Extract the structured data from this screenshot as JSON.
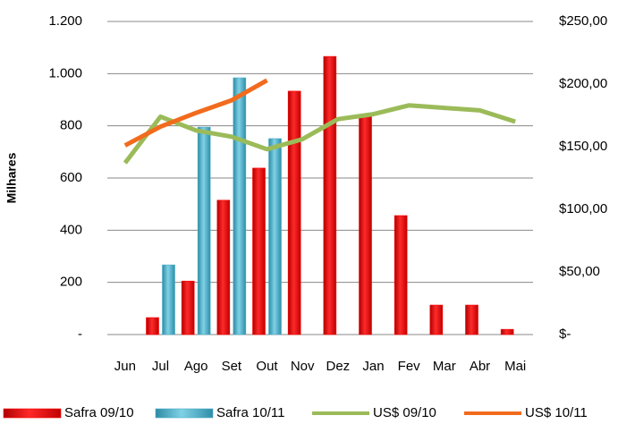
{
  "chart_data": {
    "type": "bar-line",
    "y_label": "Milhares",
    "categories": [
      "Jun",
      "Jul",
      "Ago",
      "Set",
      "Out",
      "Nov",
      "Dez",
      "Jan",
      "Fev",
      "Mar",
      "Abr",
      "Mai"
    ],
    "series": [
      {
        "name": "Safra 09/10",
        "kind": "bar",
        "color": "#ff0000",
        "values": [
          null,
          65,
          205,
          515,
          638,
          933,
          1066,
          843,
          456,
          113,
          113,
          20
        ]
      },
      {
        "name": "Safra 10/11",
        "kind": "bar",
        "color": "#4bacc6",
        "values": [
          null,
          267,
          795,
          984,
          751,
          null,
          null,
          null,
          null,
          null,
          null,
          null
        ]
      },
      {
        "name": "US$ 09/10",
        "kind": "line",
        "axis": "y2",
        "color": "#9bbb59",
        "values": [
          137,
          174,
          163,
          158,
          148,
          156,
          172,
          176,
          183,
          181,
          179,
          170
        ]
      },
      {
        "name": "US$ 10/11",
        "kind": "line",
        "axis": "y2",
        "color": "#f26b1d",
        "values": [
          151,
          166,
          177,
          187,
          203,
          null,
          null,
          null,
          null,
          null,
          null,
          null
        ]
      }
    ],
    "ylim": [
      0,
      1200
    ],
    "yticks": [
      {
        "value": 0,
        "label": "-"
      },
      200,
      400,
      600,
      800,
      {
        "value": 1000,
        "label": "1.000"
      },
      {
        "value": 1200,
        "label": "1.200"
      }
    ],
    "y2lim": [
      0,
      250
    ],
    "y2ticks": [
      {
        "value": 0,
        "label": "$-"
      },
      {
        "value": 50,
        "label": "$50,00"
      },
      {
        "value": 100,
        "label": "$100,00"
      },
      {
        "value": 150,
        "label": "$150,00"
      },
      {
        "value": 200,
        "label": "$200,00"
      },
      {
        "value": 250,
        "label": "$250,00"
      }
    ],
    "grid": true,
    "legend": "bottom"
  }
}
